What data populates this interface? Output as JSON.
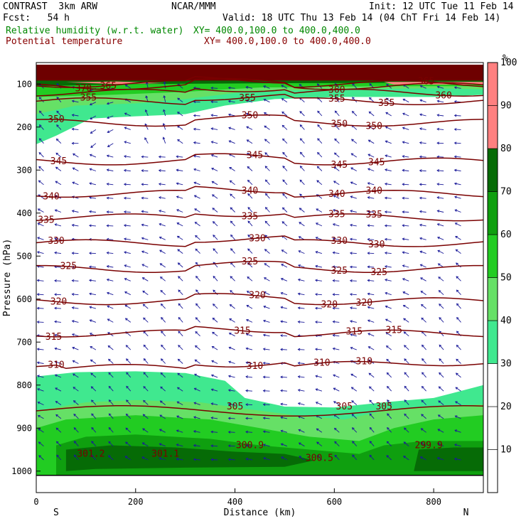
{
  "header": {
    "model": "CONTRAST  3km ARW",
    "org": "NCAR/MMM",
    "init": "Init: 12 UTC Tue 11 Feb 14",
    "fcst": "Fcst:   54 h",
    "valid": "Valid: 18 UTC Thu 13 Feb 14 (04 ChT Fri 14 Feb 14)",
    "field1": "Relative humidity (w.r.t. water)",
    "field1_xy": "XY= 400.0,100.0 to 400.0,400.0",
    "field2": "Potential temperature",
    "field2_xy": "XY= 400.0,100.0 to 400.0,400.0"
  },
  "colors": {
    "rh_field": "#008800",
    "theta_field": "#880000",
    "contour": "#7a0000",
    "wind": "#1a1a99",
    "colorbar": [
      "#ffffff",
      "#ffffff",
      "#ffffff",
      "#40e88f",
      "#66e066",
      "#22cc22",
      "#0f9f0f",
      "#066b06",
      "#ff8080"
    ]
  },
  "chart_data": {
    "type": "cross-section",
    "xlabel": "Distance (km)",
    "ylabel": "Pressure (hPa)",
    "x_ticks": [
      0,
      200,
      400,
      600,
      800
    ],
    "xlim": [
      0,
      900
    ],
    "y_ticks": [
      100,
      200,
      300,
      400,
      500,
      600,
      700,
      800,
      900,
      1000
    ],
    "ylim": [
      1050,
      50
    ],
    "x_end_labels": {
      "left": "S",
      "right": "N"
    },
    "colorbar": {
      "unit": "%",
      "labels": [
        10,
        20,
        30,
        40,
        50,
        60,
        70,
        80,
        90,
        100
      ],
      "levels": [
        0,
        10,
        20,
        30,
        40,
        50,
        60,
        70,
        80,
        90,
        100
      ]
    },
    "theta_contours": [
      {
        "value": 310,
        "base_p": 760,
        "labels": [
          {
            "x": 40,
            "t": "310"
          },
          {
            "x": 440,
            "t": "310"
          },
          {
            "x": 575,
            "t": "310"
          },
          {
            "x": 660,
            "t": "310"
          }
        ]
      },
      {
        "value": 315,
        "base_p": 680,
        "labels": [
          {
            "x": 35,
            "t": "315"
          },
          {
            "x": 415,
            "t": "315"
          },
          {
            "x": 640,
            "t": "315"
          },
          {
            "x": 720,
            "t": "315"
          }
        ]
      },
      {
        "value": 320,
        "base_p": 605,
        "labels": [
          {
            "x": 45,
            "t": "320"
          },
          {
            "x": 445,
            "t": "320"
          },
          {
            "x": 590,
            "t": "320"
          },
          {
            "x": 660,
            "t": "320"
          }
        ]
      },
      {
        "value": 325,
        "base_p": 530,
        "labels": [
          {
            "x": 65,
            "t": "325"
          },
          {
            "x": 430,
            "t": "325"
          },
          {
            "x": 610,
            "t": "325"
          },
          {
            "x": 690,
            "t": "325"
          }
        ]
      },
      {
        "value": 330,
        "base_p": 470,
        "labels": [
          {
            "x": 40,
            "t": "330"
          },
          {
            "x": 445,
            "t": "330"
          },
          {
            "x": 610,
            "t": "330"
          },
          {
            "x": 685,
            "t": "330"
          }
        ]
      },
      {
        "value": 335,
        "base_p": 410,
        "labels": [
          {
            "x": 20,
            "t": "335"
          },
          {
            "x": 430,
            "t": "335"
          },
          {
            "x": 605,
            "t": "335"
          },
          {
            "x": 680,
            "t": "335"
          }
        ]
      },
      {
        "value": 340,
        "base_p": 355,
        "labels": [
          {
            "x": 30,
            "t": "340"
          },
          {
            "x": 430,
            "t": "340"
          },
          {
            "x": 605,
            "t": "340"
          },
          {
            "x": 680,
            "t": "340"
          }
        ]
      },
      {
        "value": 345,
        "base_p": 280,
        "labels": [
          {
            "x": 45,
            "t": "345"
          },
          {
            "x": 440,
            "t": "345"
          },
          {
            "x": 610,
            "t": "345"
          },
          {
            "x": 685,
            "t": "345"
          }
        ]
      },
      {
        "value": 350,
        "base_p": 190,
        "labels": [
          {
            "x": 40,
            "t": "350"
          },
          {
            "x": 430,
            "t": "350"
          },
          {
            "x": 610,
            "t": "350"
          },
          {
            "x": 680,
            "t": "350"
          }
        ]
      },
      {
        "value": 355,
        "base_p": 140,
        "labels": [
          {
            "x": 105,
            "t": "355"
          },
          {
            "x": 425,
            "t": "355"
          },
          {
            "x": 605,
            "t": "355"
          },
          {
            "x": 705,
            "t": "355"
          }
        ]
      },
      {
        "value": 360,
        "base_p": 120,
        "labels": [
          {
            "x": 605,
            "t": "360"
          },
          {
            "x": 820,
            "t": "360"
          }
        ]
      },
      {
        "value": 365,
        "base_p": 100,
        "labels": [
          {
            "x": 145,
            "t": "365"
          },
          {
            "x": 785,
            "t": "365"
          }
        ]
      },
      {
        "value": 370,
        "base_p": 105,
        "labels": [
          {
            "x": 95,
            "t": "370"
          }
        ]
      }
    ],
    "extrema": [
      {
        "x": 110,
        "p": 960,
        "t": "301.2"
      },
      {
        "x": 260,
        "p": 960,
        "t": "301.1"
      },
      {
        "x": 430,
        "p": 940,
        "t": "300.9"
      },
      {
        "x": 570,
        "p": 970,
        "t": "300.5"
      },
      {
        "x": 790,
        "p": 940,
        "t": "299.9"
      }
    ]
  }
}
